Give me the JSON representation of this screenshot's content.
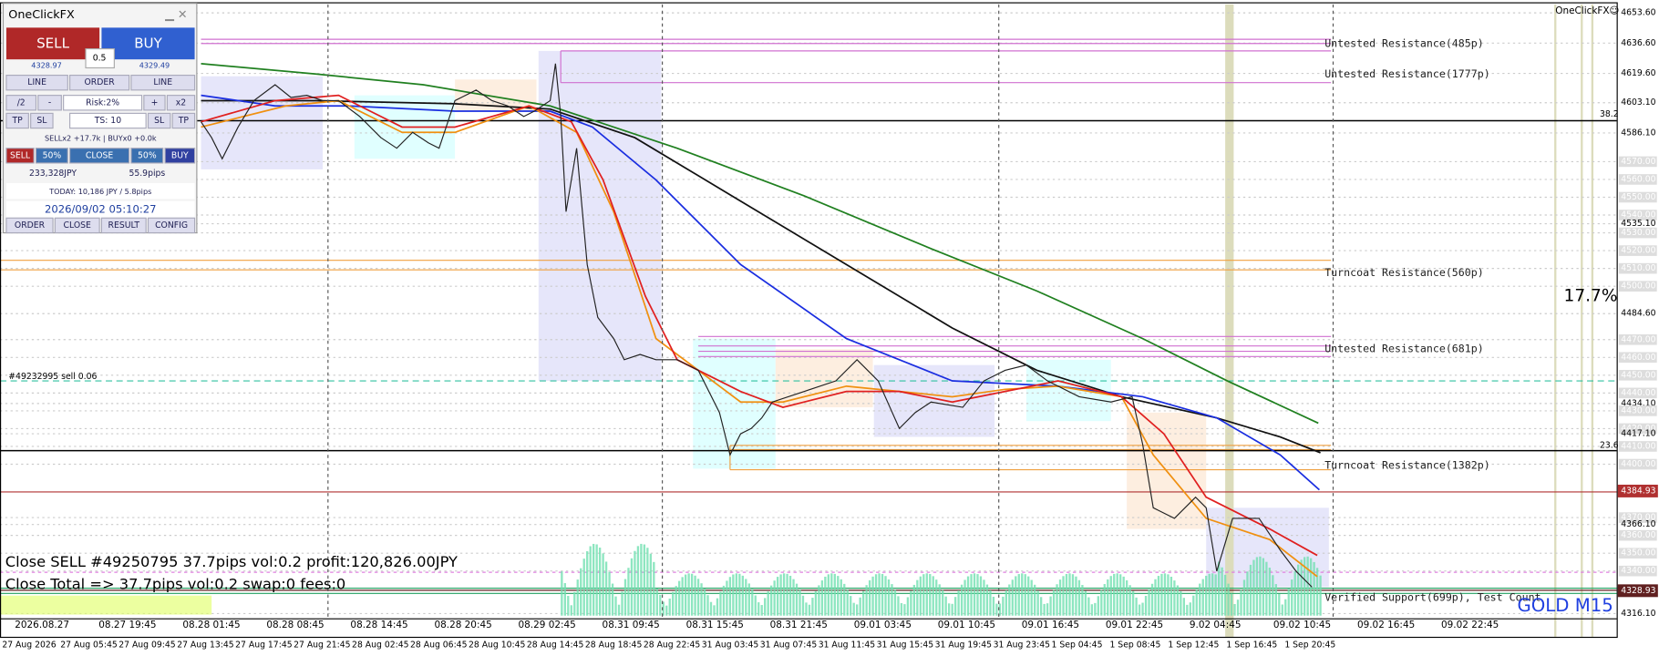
{
  "panel": {
    "title": "OneClickFX",
    "sell": "SELL",
    "buy": "BUY",
    "bid": "4328.97",
    "lot": "0.5",
    "ask": "4329.49",
    "row1": [
      "LINE",
      "ORDER",
      "LINE"
    ],
    "row2": [
      "/2",
      "-",
      "Risk:2%",
      "+",
      "x2"
    ],
    "row3": [
      "TP",
      "SL",
      "TS: 10",
      "SL",
      "TP"
    ],
    "positions": "SELLx2 +17.7k | BUYx0 +0.0k",
    "row4": [
      "SELL",
      "50%",
      "CLOSE",
      "50%",
      "BUY"
    ],
    "profit": "233,328JPY",
    "pips": "55.9pips",
    "today": "TODAY: 10,186 JPY / 5.8pips",
    "clock": "2026/09/02  05:10:27",
    "tabs": [
      "ORDER",
      "CLOSE",
      "RESULT",
      "CONFIG"
    ]
  },
  "chart": {
    "brand": "OneClickFX☺",
    "symbol": "GOLD M15",
    "percent": "17.7%",
    "fib_upper": "38.2",
    "fib_lower": "23.6",
    "order_line": "#49232995 sell 0.06",
    "messages": [
      "Close SELL #49250795 37.7pips vol:0.2 profit:120,826.00JPY",
      "Close Total => 37.7pips vol:0.2 swap:0 fees:0"
    ],
    "levels": [
      "Untested Resistance(485p)",
      "Untested Resistance(1777p)",
      "Turncoat Resistance(560p)",
      "Untested Resistance(681p)",
      "Turncoat Resistance(1382p)",
      "Verified Support(699p), Test Count"
    ],
    "price_axis": [
      "4653.60",
      "4636.60",
      "4619.60",
      "4603.10",
      "4586.10",
      "4570.00",
      "4560.00",
      "4550.00",
      "4540.00",
      "4535.10",
      "4530.00",
      "4520.00",
      "4510.00",
      "4500.00",
      "4484.60",
      "4470.00",
      "4460.00",
      "4450.00",
      "4440.00",
      "4434.10",
      "4430.00",
      "4420.00",
      "4417.10",
      "4410.00",
      "4400.00",
      "4370.00",
      "4366.10",
      "4360.00",
      "4350.00",
      "4340.00",
      "4316.10"
    ],
    "last_price": "4384.93",
    "bid_price": "4328.93",
    "top_times": [
      "2026.08.27",
      "08.27 19:45",
      "08.28 01:45",
      "08.28 08:45",
      "08.28 14:45",
      "08.28 20:45",
      "08.29 02:45",
      "08.31 09:45",
      "08.31 15:45",
      "08.31 21:45",
      "09.01 03:45",
      "09.01 10:45",
      "09.01 16:45",
      "09.01 22:45",
      "9.02 04:45",
      "09.02 10:45",
      "09.02 16:45",
      "09.02 22:45"
    ],
    "bottom_times": [
      "27 Aug 2026",
      "27 Aug 05:45",
      "27 Aug 09:45",
      "27 Aug 13:45",
      "27 Aug 17:45",
      "27 Aug 21:45",
      "28 Aug 02:45",
      "28 Aug 06:45",
      "28 Aug 10:45",
      "28 Aug 14:45",
      "28 Aug 18:45",
      "28 Aug 22:45",
      "31 Aug 03:45",
      "31 Aug 07:45",
      "31 Aug 11:45",
      "31 Aug 15:45",
      "31 Aug 19:45",
      "31 Aug 23:45",
      "1 Sep 04:45",
      "1 Sep 08:45",
      "1 Sep 12:45",
      "1 Sep 16:45",
      "1 Sep 20:45"
    ]
  }
}
